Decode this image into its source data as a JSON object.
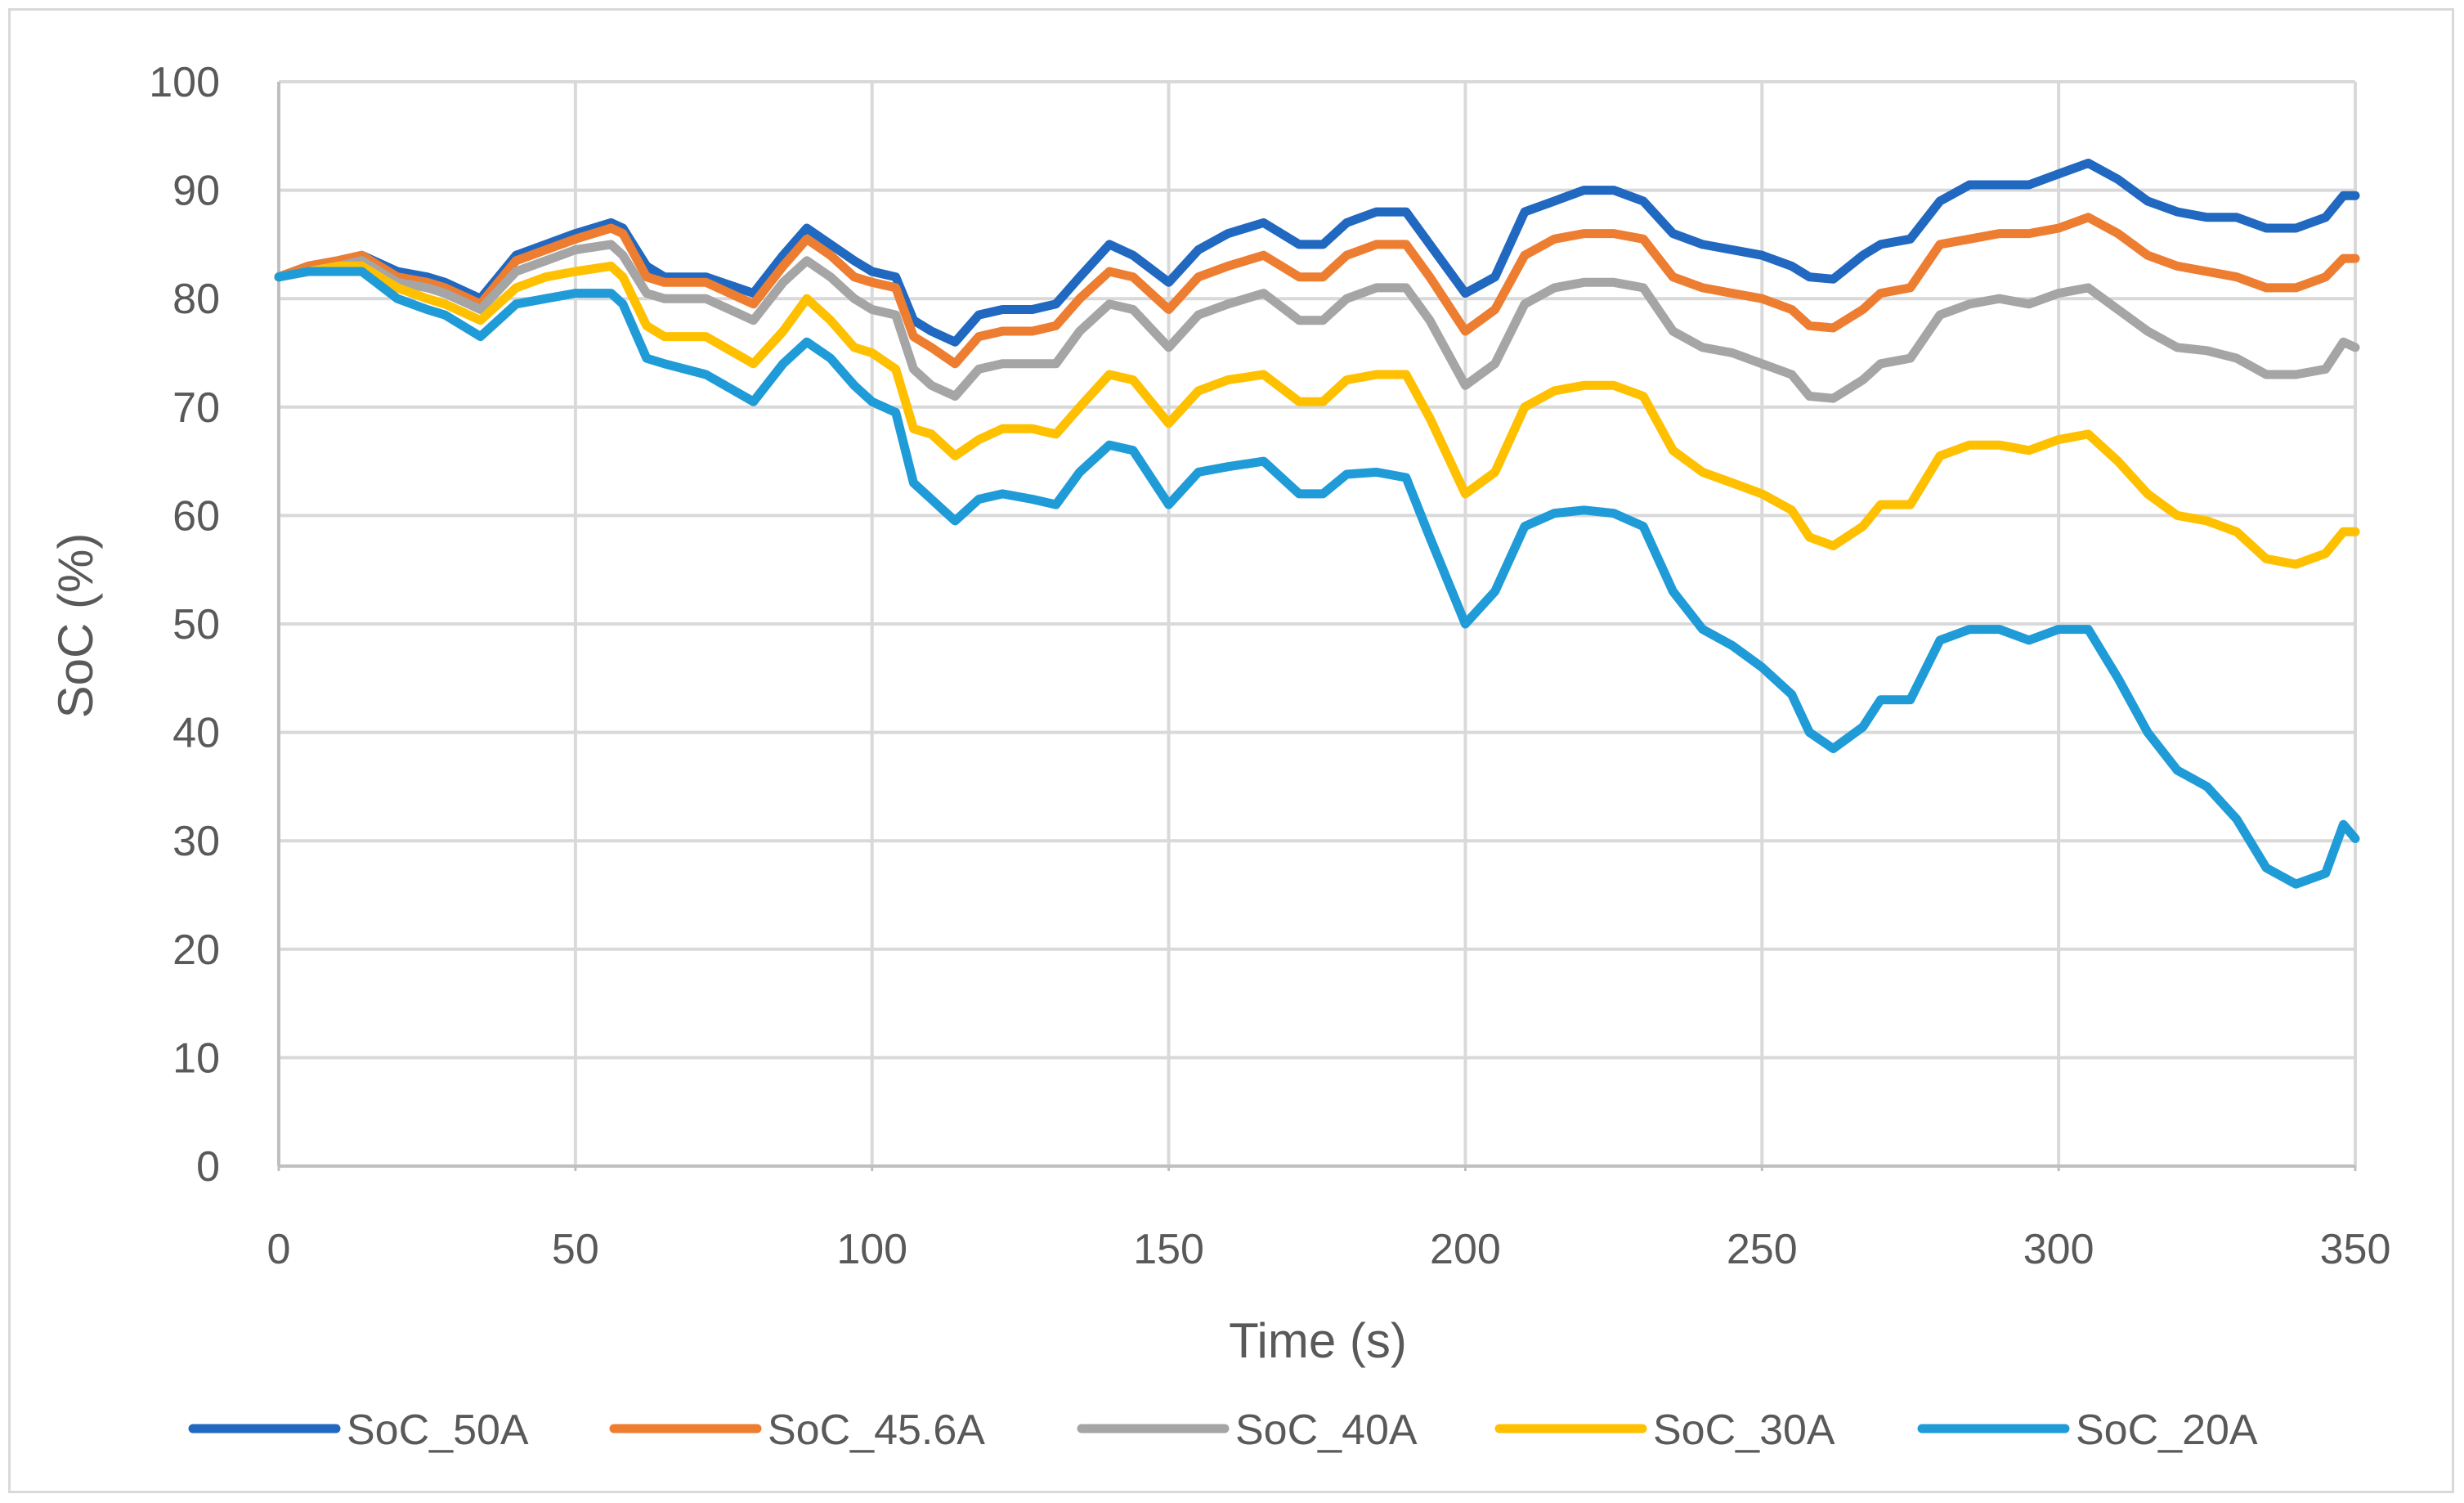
{
  "chart_data": {
    "type": "line",
    "title": "",
    "xlabel": "Time (s)",
    "ylabel": "SoC (%)",
    "xlim": [
      0,
      350
    ],
    "ylim": [
      0,
      100
    ],
    "xticks": [
      0,
      50,
      100,
      150,
      200,
      250,
      300,
      350
    ],
    "yticks": [
      0,
      10,
      20,
      30,
      40,
      50,
      60,
      70,
      80,
      90,
      100
    ],
    "grid": true,
    "legend_position": "bottom",
    "x": [
      0,
      5,
      10,
      14,
      20,
      25,
      28,
      34,
      40,
      45,
      50,
      56,
      58,
      62,
      65,
      72,
      80,
      85,
      89,
      93,
      97,
      100,
      104,
      107,
      110,
      114,
      118,
      122,
      127,
      131,
      135,
      140,
      144,
      150,
      155,
      160,
      166,
      172,
      176,
      180,
      185,
      190,
      194,
      200,
      205,
      210,
      215,
      220,
      225,
      230,
      235,
      240,
      245,
      250,
      255,
      258,
      262,
      267,
      270,
      275,
      280,
      285,
      290,
      295,
      300,
      305,
      310,
      315,
      320,
      325,
      330,
      335,
      340,
      345,
      348,
      350
    ],
    "series": [
      {
        "name": "SoC_50A",
        "color": "#2168c0",
        "values": [
          82,
          83,
          83.5,
          84,
          82.5,
          82,
          81.5,
          80,
          84,
          85,
          86,
          87,
          86.5,
          83,
          82,
          82,
          80.5,
          84,
          86.5,
          85,
          83.5,
          82.5,
          82,
          78,
          77,
          76,
          78.5,
          79,
          79,
          79.5,
          82,
          85,
          84,
          81.5,
          84.5,
          86,
          87,
          85,
          85,
          87,
          88,
          88,
          85,
          80.5,
          82,
          88,
          89,
          90,
          90,
          89,
          86,
          85,
          84.5,
          84,
          83,
          82,
          81.8,
          84,
          85,
          85.5,
          89,
          90.5,
          90.5,
          90.5,
          91.5,
          92.5,
          91,
          89,
          88,
          87.5,
          87.5,
          86.5,
          86.5,
          87.5,
          89.5,
          89.5
        ]
      },
      {
        "name": "SoC_45.6A",
        "color": "#ed7d31",
        "values": [
          82,
          83,
          83.5,
          84,
          82,
          81.5,
          81,
          79.5,
          83.5,
          84.5,
          85.5,
          86.5,
          86,
          82,
          81.5,
          81.5,
          79.5,
          83,
          85.5,
          84,
          82,
          81.5,
          81,
          76.5,
          75.5,
          74,
          76.5,
          77,
          77,
          77.5,
          80,
          82.5,
          82,
          79,
          82,
          83,
          84,
          82,
          82,
          84,
          85,
          85,
          82,
          77,
          79,
          84,
          85.5,
          86,
          86,
          85.5,
          82,
          81,
          80.5,
          80,
          79,
          77.5,
          77.3,
          79,
          80.5,
          81,
          85,
          85.5,
          86,
          86,
          86.5,
          87.5,
          86,
          84,
          83,
          82.5,
          82,
          81,
          81,
          82,
          83.7,
          83.7
        ]
      },
      {
        "name": "SoC_40A",
        "color": "#a5a5a5",
        "values": [
          82,
          82.5,
          83,
          83.5,
          81.5,
          81,
          80.5,
          79,
          82.5,
          83.5,
          84.5,
          85,
          84,
          80.5,
          80,
          80,
          78,
          81.5,
          83.5,
          82,
          80,
          79,
          78.5,
          73.5,
          72,
          71,
          73.5,
          74,
          74,
          74,
          77,
          79.5,
          79,
          75.5,
          78.5,
          79.5,
          80.5,
          78,
          78,
          80,
          81,
          81,
          78,
          72,
          74,
          79.5,
          81,
          81.5,
          81.5,
          81,
          77,
          75.5,
          75,
          74,
          73,
          71,
          70.8,
          72.5,
          74,
          74.5,
          78.5,
          79.5,
          80,
          79.5,
          80.5,
          81,
          79,
          77,
          75.5,
          75.2,
          74.5,
          73,
          73,
          73.5,
          76,
          75.5
        ]
      },
      {
        "name": "SoC_30A",
        "color": "#ffc000",
        "values": [
          82,
          82.5,
          83,
          83,
          81,
          80,
          79.5,
          78,
          81,
          82,
          82.5,
          83,
          82,
          77.5,
          76.5,
          76.5,
          74,
          77,
          80,
          78,
          75.5,
          75,
          73.5,
          68,
          67.5,
          65.5,
          67,
          68,
          68,
          67.5,
          70,
          73,
          72.5,
          68.5,
          71.5,
          72.5,
          73,
          70.5,
          70.5,
          72.5,
          73,
          73,
          69,
          62,
          64,
          70,
          71.5,
          72,
          72,
          71,
          66,
          64,
          63,
          62,
          60.5,
          58,
          57.2,
          59,
          61,
          61,
          65.5,
          66.5,
          66.5,
          66,
          67,
          67.5,
          65,
          62,
          60,
          59.5,
          58.5,
          56,
          55.5,
          56.5,
          58.5,
          58.5
        ]
      },
      {
        "name": "SoC_20A",
        "color": "#1f9bd7",
        "values": [
          82,
          82.5,
          82.5,
          82.5,
          80,
          79,
          78.5,
          76.5,
          79.5,
          80,
          80.5,
          80.5,
          79.5,
          74.5,
          74,
          73,
          70.5,
          74,
          76,
          74.5,
          72,
          70.5,
          69.5,
          63,
          61.5,
          59.5,
          61.5,
          62,
          61.5,
          61,
          64,
          66.5,
          66,
          61,
          64,
          64.5,
          65,
          62,
          62,
          63.8,
          64,
          63.5,
          58,
          50,
          53,
          59,
          60.2,
          60.5,
          60.2,
          59,
          53,
          49.5,
          48,
          46,
          43.5,
          40,
          38.5,
          40.5,
          43,
          43,
          48.5,
          49.5,
          49.5,
          48.5,
          49.5,
          49.5,
          45,
          40,
          36.5,
          35,
          32,
          27.5,
          26,
          27,
          31.5,
          30.2
        ]
      }
    ]
  }
}
